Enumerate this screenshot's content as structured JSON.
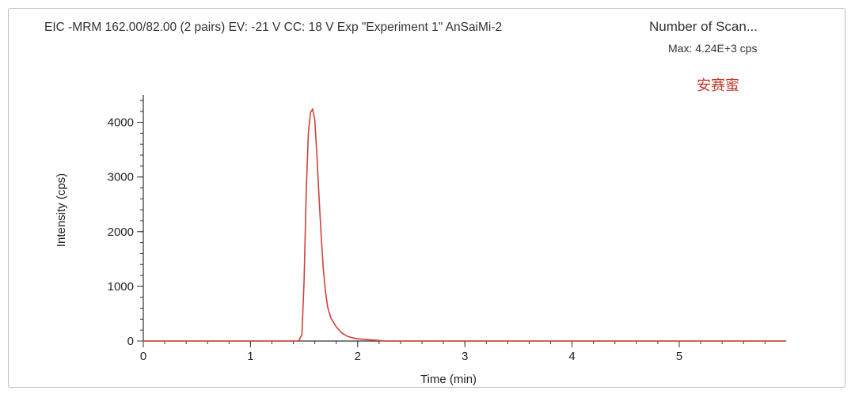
{
  "chart_data": {
    "type": "line",
    "title": "EIC -MRM 162.00/82.00 (2 pairs) EV: -21 V CC: 18 V Exp \"Experiment 1\" AnSaiMi-2",
    "scan_label": "Number of Scan...",
    "max_label": "Max: 4.24E+3 cps",
    "annotation": "安赛蜜",
    "xlabel": "Time (min)",
    "ylabel": "Intensity (cps)",
    "xlim": [
      0,
      6
    ],
    "ylim": [
      0,
      4500
    ],
    "x_ticks": [
      0,
      1,
      2,
      3,
      4,
      5
    ],
    "y_ticks": [
      0,
      1000,
      2000,
      3000,
      4000
    ],
    "grid": false,
    "line_color": "#d0413a",
    "series": [
      {
        "x": [
          0.0,
          1.3,
          1.45,
          1.48,
          1.5,
          1.52,
          1.54,
          1.56,
          1.58,
          1.6,
          1.62,
          1.64,
          1.66,
          1.68,
          1.7,
          1.72,
          1.75,
          1.8,
          1.85,
          1.9,
          1.95,
          2.0,
          2.1,
          2.2,
          2.25,
          6.0
        ],
        "y": [
          0,
          0,
          0,
          120,
          1100,
          2700,
          3800,
          4180,
          4240,
          4050,
          3400,
          2600,
          1900,
          1300,
          900,
          620,
          420,
          260,
          150,
          90,
          60,
          40,
          25,
          10,
          0,
          0
        ]
      }
    ]
  }
}
